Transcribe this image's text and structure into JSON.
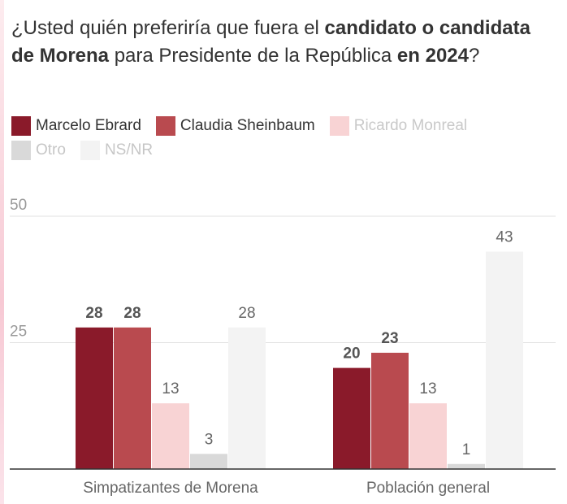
{
  "title_parts": [
    {
      "text": "¿Usted quién preferiría que fuera el ",
      "bold": false
    },
    {
      "text": "candidato o candidata de Morena",
      "bold": true
    },
    {
      "text": " para Presidente de la República ",
      "bold": false
    },
    {
      "text": "en 2024",
      "bold": true
    },
    {
      "text": "?",
      "bold": false
    }
  ],
  "chart_data": {
    "type": "bar",
    "categories": [
      "Simpatizantes de Morena",
      "Población general"
    ],
    "series": [
      {
        "name": "Marcelo Ebrard",
        "color": "#8a1a2a",
        "values": [
          28,
          20
        ],
        "bold_label": true
      },
      {
        "name": "Claudia Sheinbaum",
        "color": "#b94a4f",
        "values": [
          28,
          23
        ],
        "bold_label": true
      },
      {
        "name": "Ricardo Monreal",
        "color": "#f8d3d4",
        "values": [
          13,
          13
        ],
        "bold_label": false
      },
      {
        "name": "Otro",
        "color": "#d9d9d9",
        "values": [
          3,
          1
        ],
        "bold_label": false
      },
      {
        "name": "NS/NR",
        "color": "#f3f3f3",
        "values": [
          28,
          43
        ],
        "bold_label": false
      }
    ],
    "yticks": [
      25,
      50
    ],
    "ylim": [
      0,
      50
    ],
    "grid": true,
    "legend_position": "top-left"
  }
}
